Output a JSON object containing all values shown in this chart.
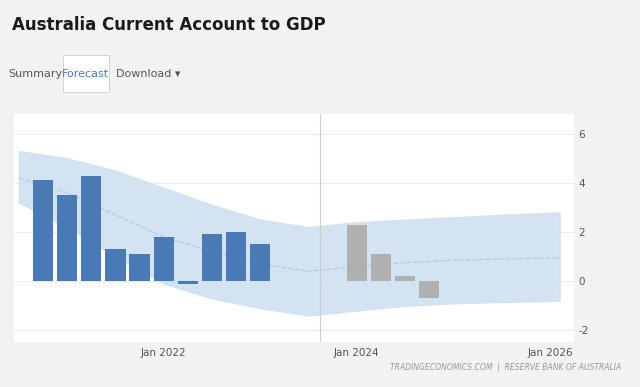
{
  "title": "Australia Current Account to GDP",
  "footer": "TRADINGECONOMICS.COM  |  RESERVE BANK OF AUSTRALIA",
  "yticks": [
    -2,
    0,
    2,
    4,
    6
  ],
  "ylim": [
    -2.5,
    6.8
  ],
  "bar_blue": "#4a7ab5",
  "bar_gray": "#b0b0b0",
  "band_color": "#cfe0f0",
  "band_line_color": "#a8c4dc",
  "grid_color": "#e8e8e8",
  "page_bg": "#f2f2f2",
  "header_bg": "#f2f2f2",
  "tab_bg": "#ffffff",
  "chart_bg": "#ffffff",
  "historical_bars": [
    {
      "x": 2020.75,
      "val": 4.1
    },
    {
      "x": 2021.0,
      "val": 3.5
    },
    {
      "x": 2021.25,
      "val": 4.3
    },
    {
      "x": 2021.5,
      "val": 1.3
    },
    {
      "x": 2021.75,
      "val": 1.1
    },
    {
      "x": 2022.0,
      "val": 1.8
    },
    {
      "x": 2022.25,
      "val": -0.1
    },
    {
      "x": 2022.5,
      "val": 1.9
    },
    {
      "x": 2022.75,
      "val": 2.0
    },
    {
      "x": 2023.0,
      "val": 1.5
    }
  ],
  "forecast_bars": [
    {
      "x": 2024.0,
      "val": 2.3
    },
    {
      "x": 2024.25,
      "val": 1.1
    },
    {
      "x": 2024.5,
      "val": 0.2
    },
    {
      "x": 2024.75,
      "val": -0.7
    }
  ],
  "band_x": [
    2020.5,
    2021.0,
    2021.5,
    2022.0,
    2022.5,
    2023.0,
    2023.5,
    2024.0,
    2024.5,
    2025.0,
    2025.5,
    2026.1
  ],
  "band_upper": [
    5.3,
    5.0,
    4.5,
    3.8,
    3.1,
    2.5,
    2.2,
    2.4,
    2.5,
    2.6,
    2.7,
    2.8
  ],
  "band_lower": [
    3.2,
    2.2,
    1.0,
    -0.1,
    -0.7,
    -1.1,
    -1.4,
    -1.2,
    -1.0,
    -0.9,
    -0.85,
    -0.8
  ],
  "trend_x": [
    2020.5,
    2021.0,
    2021.5,
    2022.0,
    2022.5,
    2023.0,
    2023.5,
    2024.0,
    2024.5,
    2025.0,
    2025.5,
    2026.1
  ],
  "trend_y": [
    4.2,
    3.6,
    2.7,
    1.8,
    1.2,
    0.7,
    0.4,
    0.6,
    0.75,
    0.85,
    0.9,
    0.95
  ],
  "xlim": [
    2020.45,
    2026.25
  ],
  "xtick_positions": [
    2022.0,
    2024.0,
    2026.0
  ],
  "xtick_labels": [
    "Jan 2022",
    "Jan 2024",
    "Jan 2026"
  ],
  "bar_width": 0.21,
  "divider_x": 2023.62
}
